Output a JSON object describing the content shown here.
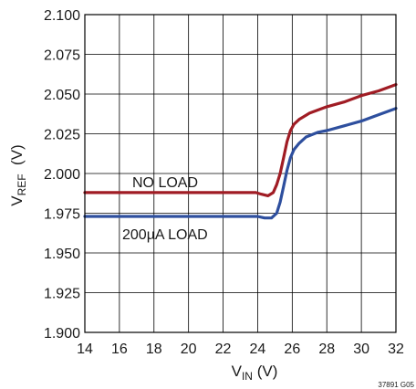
{
  "chart_data": {
    "type": "line",
    "xlabel": {
      "main": "V",
      "sub": "IN",
      "unit": " (V)"
    },
    "ylabel": {
      "main": "V",
      "sub": "REF",
      "unit": "  (V)"
    },
    "xlim": [
      14,
      32
    ],
    "ylim": [
      1.9,
      2.1
    ],
    "x_ticks": [
      14,
      16,
      18,
      20,
      22,
      24,
      26,
      28,
      30,
      32
    ],
    "y_ticks": [
      1.9,
      1.925,
      1.95,
      1.975,
      2.0,
      2.025,
      2.05,
      2.075,
      2.1
    ],
    "x_tick_labels": [
      "14",
      "16",
      "18",
      "20",
      "22",
      "24",
      "26",
      "28",
      "30",
      "32"
    ],
    "y_tick_labels": [
      "1.900",
      "1.925",
      "1.950",
      "1.975",
      "2.000",
      "2.025",
      "2.050",
      "2.075",
      "2.100"
    ],
    "grid": true,
    "series": [
      {
        "name": "NO LOAD",
        "color": "#a01c24",
        "x": [
          14,
          16,
          18,
          20,
          22,
          23.9,
          24.2,
          24.6,
          24.9,
          25.1,
          25.3,
          25.5,
          25.7,
          25.9,
          26.1,
          26.4,
          27,
          28,
          29,
          30,
          31,
          32
        ],
        "y": [
          1.988,
          1.988,
          1.988,
          1.988,
          1.988,
          1.988,
          1.987,
          1.986,
          1.988,
          1.993,
          2.0,
          2.01,
          2.02,
          2.027,
          2.031,
          2.034,
          2.038,
          2.042,
          2.045,
          2.049,
          2.052,
          2.056
        ]
      },
      {
        "name": "200µA LOAD",
        "color": "#2e4f9e",
        "x": [
          14,
          16,
          18,
          20,
          22,
          24,
          24.4,
          24.8,
          25.1,
          25.3,
          25.5,
          25.7,
          25.9,
          26.1,
          26.4,
          26.8,
          27.5,
          28,
          29,
          30,
          31,
          32
        ],
        "y": [
          1.973,
          1.973,
          1.973,
          1.973,
          1.973,
          1.973,
          1.972,
          1.972,
          1.975,
          1.982,
          1.992,
          2.002,
          2.01,
          2.015,
          2.019,
          2.023,
          2.026,
          2.027,
          2.03,
          2.033,
          2.037,
          2.041
        ]
      }
    ],
    "annotations": [
      {
        "text": "NO LOAD",
        "series": 0
      },
      {
        "text": "200µA LOAD",
        "series": 1
      }
    ],
    "figure_code": "37891 G05"
  }
}
